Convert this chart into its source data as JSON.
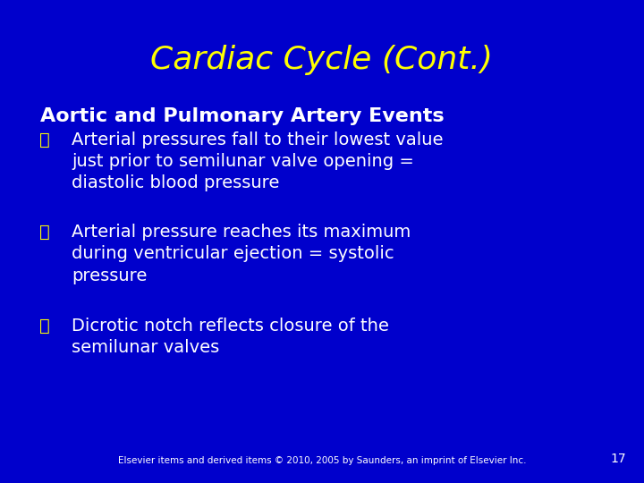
{
  "background_color": "#0000cc",
  "title": "Cardiac Cycle (Cont.)",
  "title_color": "#ffff00",
  "title_fontsize": 26,
  "title_fontstyle": "italic",
  "subtitle": "Aortic and Pulmonary Artery Events",
  "subtitle_color": "#ffffff",
  "subtitle_fontsize": 16,
  "bullet_color": "#ffff00",
  "body_color": "#ffffff",
  "body_fontsize": 14,
  "bullets": [
    "Arterial pressures fall to their lowest value\njust prior to semilunar valve opening =\ndiastolic blood pressure",
    "Arterial pressure reaches its maximum\nduring ventricular ejection = systolic\npressure",
    "Dicrotic notch reflects closure of the\nsemilunar valves"
  ],
  "footer": "Elsevier items and derived items © 2010, 2005 by Saunders, an imprint of Elsevier Inc.",
  "footer_color": "#ffffff",
  "footer_fontsize": 7.5,
  "page_number": "17",
  "page_number_color": "#ffffff",
  "page_number_fontsize": 10
}
